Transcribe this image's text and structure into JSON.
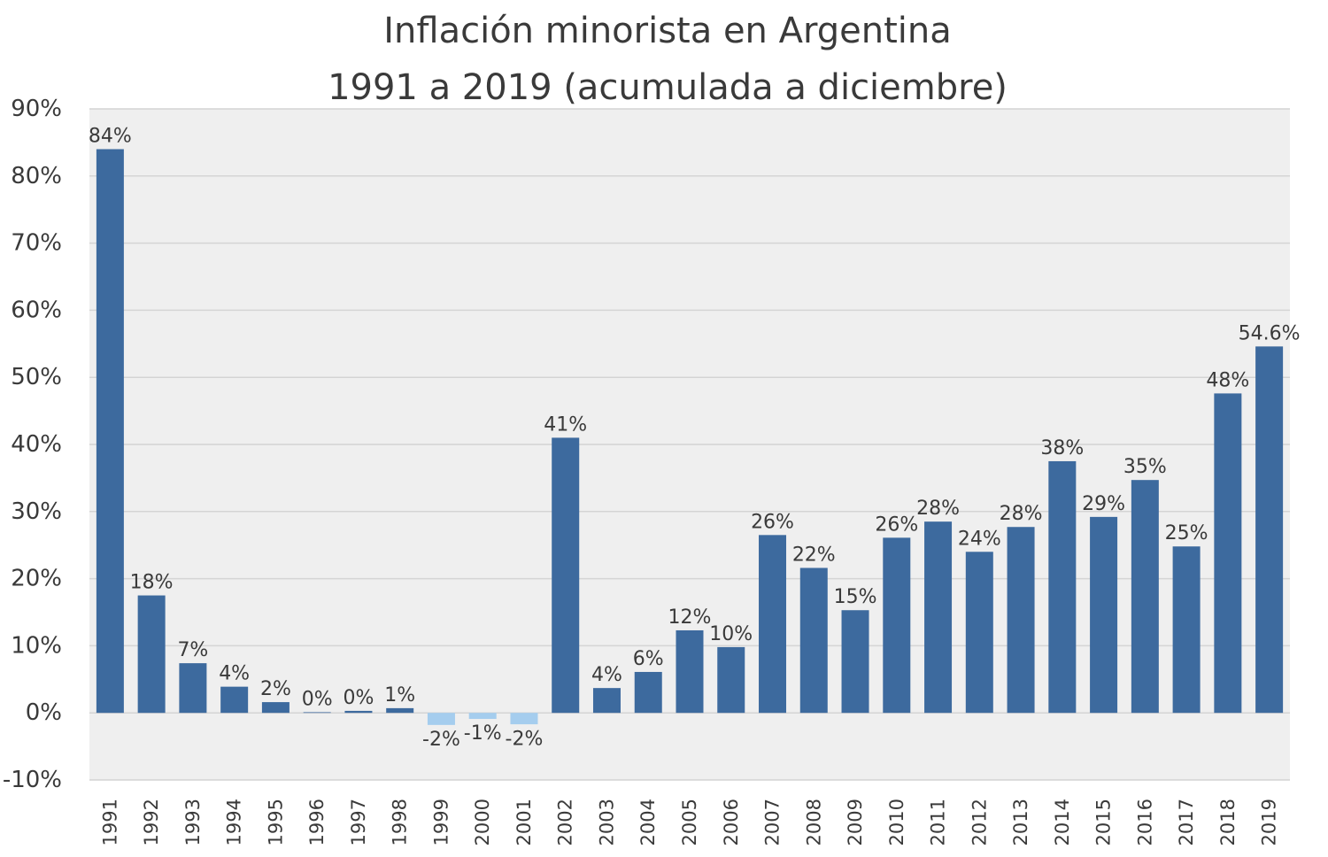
{
  "chart_data": {
    "type": "bar",
    "title": [
      "Inflación minorista en Argentina",
      "1991 a 2019 (acumulada a diciembre)"
    ],
    "xlabel": "",
    "ylabel": "",
    "ylim": [
      -10,
      90
    ],
    "ytick_values": [
      -10,
      0,
      10,
      20,
      30,
      40,
      50,
      60,
      70,
      80,
      90
    ],
    "ytick_labels": [
      "-10%",
      "0%",
      "10%",
      "20%",
      "30%",
      "40%",
      "50%",
      "60%",
      "70%",
      "80%",
      "90%"
    ],
    "grid": true,
    "legend": "none",
    "categories": [
      "1991",
      "1992",
      "1993",
      "1994",
      "1995",
      "1996",
      "1997",
      "1998",
      "1999",
      "2000",
      "2001",
      "2002",
      "2003",
      "2004",
      "2005",
      "2006",
      "2007",
      "2008",
      "2009",
      "2010",
      "2011",
      "2012",
      "2013",
      "2014",
      "2015",
      "2016",
      "2017",
      "2018",
      "2019"
    ],
    "values": [
      84.0,
      17.5,
      7.4,
      3.9,
      1.6,
      0.1,
      0.3,
      0.7,
      -1.8,
      -0.9,
      -1.7,
      41.0,
      3.7,
      6.1,
      12.3,
      9.8,
      26.5,
      21.6,
      15.3,
      26.1,
      28.5,
      24.0,
      27.7,
      37.5,
      29.2,
      34.7,
      24.8,
      47.6,
      54.6
    ],
    "data_labels": [
      "84%",
      "18%",
      "7%",
      "4%",
      "2%",
      "0%",
      "0%",
      "1%",
      "-2%",
      "-1%",
      "-2%",
      "41%",
      "4%",
      "6%",
      "12%",
      "10%",
      "26%",
      "22%",
      "15%",
      "26%",
      "28%",
      "24%",
      "28%",
      "38%",
      "29%",
      "35%",
      "25%",
      "48%",
      "54.6%"
    ],
    "colors": {
      "positive": "#3d6a9e",
      "negative": "#a5cdee",
      "plot_background": "#efefef",
      "gridline": "#d4d4d4",
      "text": "#3a3a3a"
    }
  }
}
